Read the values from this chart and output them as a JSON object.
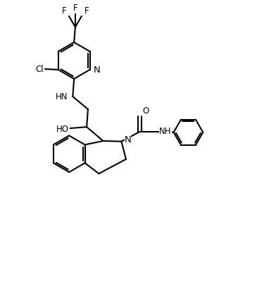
{
  "background_color": "#ffffff",
  "line_color": "#000000",
  "line_width": 1.5,
  "font_size": 8.5,
  "figsize": [
    3.65,
    4.14
  ],
  "dpi": 100,
  "xlim": [
    0,
    10
  ],
  "ylim": [
    0,
    11.4
  ]
}
